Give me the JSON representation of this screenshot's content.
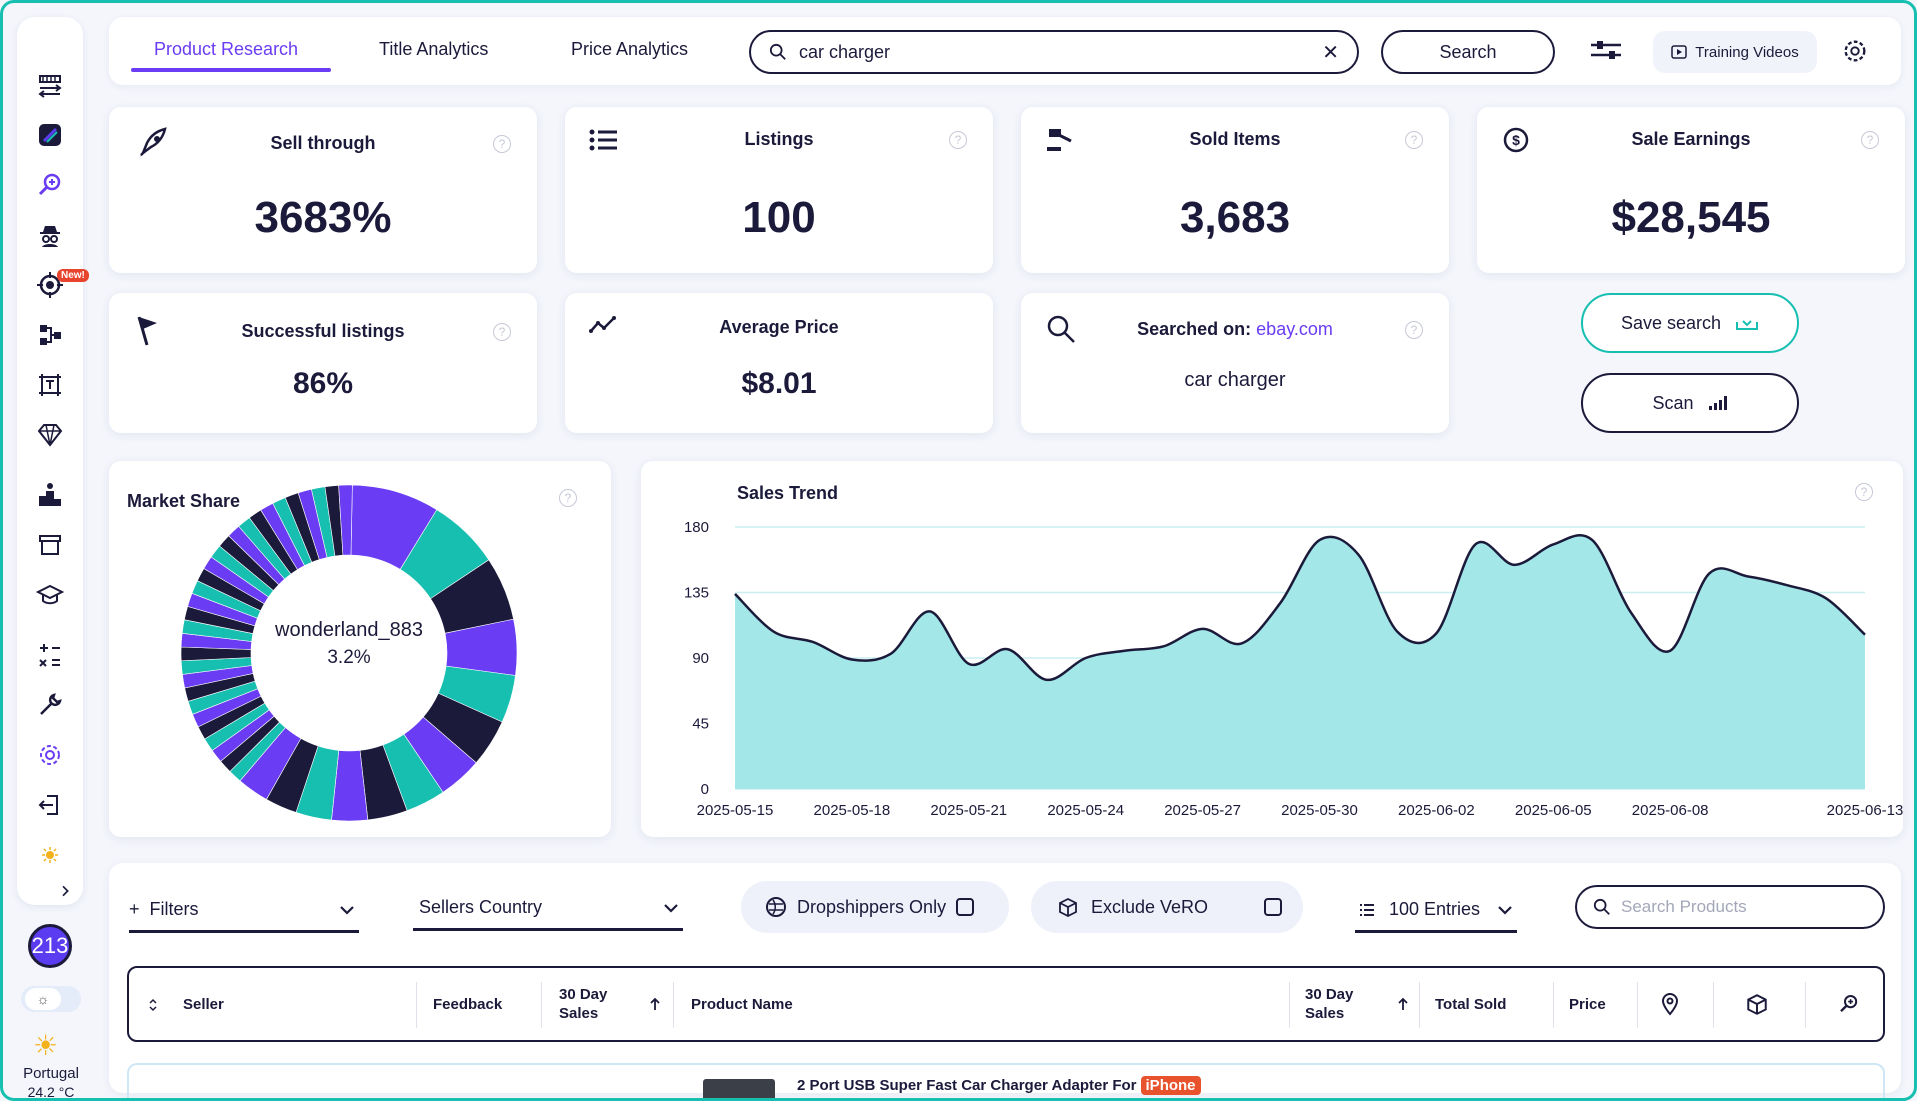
{
  "tabs": [
    {
      "label": "Product Research",
      "active": true
    },
    {
      "label": "Title Analytics",
      "active": false
    },
    {
      "label": "Price Analytics",
      "active": false
    }
  ],
  "search": {
    "value": "car charger",
    "button": "Search"
  },
  "training_label": "Training Videos",
  "stats": {
    "sell_through": {
      "title": "Sell through",
      "value": "3683%"
    },
    "listings": {
      "title": "Listings",
      "value": "100"
    },
    "sold_items": {
      "title": "Sold Items",
      "value": "3,683"
    },
    "sale_earnings": {
      "title": "Sale Earnings",
      "value": "$28,545"
    },
    "successful": {
      "title": "Successful listings",
      "value": "86%"
    },
    "avg_price": {
      "title": "Average Price",
      "value": "$8.01"
    },
    "searched_on": {
      "prefix": "Searched on:",
      "site": "ebay.com",
      "query": "car charger"
    }
  },
  "actions": {
    "save": "Save search",
    "scan": "Scan"
  },
  "sidebar": {
    "new_badge": "New!",
    "credits": "213",
    "location": "Portugal",
    "temperature": "24.2 °C"
  },
  "market_share": {
    "title": "Market Share",
    "center_label": "wonderland_883",
    "center_value": "3.2%"
  },
  "chart_data": {
    "type": "area",
    "title": "Sales Trend",
    "ylim": [
      0,
      180
    ],
    "yticks": [
      0,
      45,
      90,
      135,
      180
    ],
    "xtick_labels": [
      "2025-05-15",
      "2025-05-18",
      "2025-05-21",
      "2025-05-24",
      "2025-05-27",
      "2025-05-30",
      "2025-06-02",
      "2025-06-05",
      "2025-06-08",
      "2025-06-13"
    ],
    "xtick_positions": [
      0,
      3,
      6,
      9,
      12,
      15,
      18,
      21,
      24,
      29
    ],
    "x_range": [
      0,
      29
    ],
    "values": [
      134,
      108,
      101,
      89,
      93,
      122,
      86,
      96,
      75,
      90,
      95,
      98,
      110,
      100,
      128,
      171,
      161,
      108,
      107,
      168,
      154,
      168,
      171,
      121,
      95,
      148,
      146,
      140,
      131,
      106
    ],
    "grid": true,
    "color": "#a3e7e8",
    "line_color": "#1b1a3a"
  },
  "filters": {
    "filters_label": "Filters",
    "country_label": "Sellers Country",
    "dropshippers": "Dropshippers Only",
    "vero": "Exclude VeRO",
    "entries": "100 Entries",
    "search_placeholder": "Search Products"
  },
  "table": {
    "headers": [
      "Seller",
      "Feedback",
      "30 Day\nSales",
      "Product Name",
      "30 Day\nSales",
      "Total Sold",
      "Price"
    ],
    "first_row_name": "2 Port USB Super Fast Car Charger Adapter For",
    "first_row_tag": "iPhone"
  },
  "colors": {
    "accent": "#6a3cf3",
    "teal": "#17bfb1",
    "dark": "#1b1a3a"
  }
}
